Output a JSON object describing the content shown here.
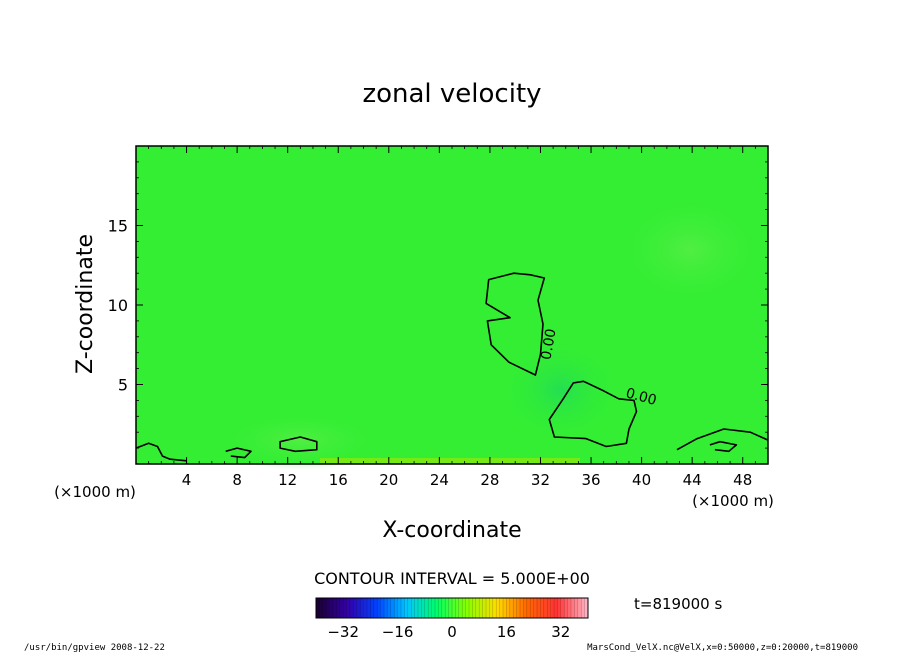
{
  "chart_data": {
    "type": "contour",
    "title": "zonal velocity",
    "xlabel": "X-coordinate",
    "ylabel": "Z-coordinate",
    "x_unit_left": "(×1000 m)",
    "x_unit_right": "(×1000 m)",
    "x_ticks": [
      4,
      8,
      12,
      16,
      20,
      24,
      28,
      32,
      36,
      40,
      44,
      48
    ],
    "y_ticks": [
      5,
      10,
      15
    ],
    "xlim": [
      0,
      50
    ],
    "ylim": [
      0,
      20
    ],
    "contour_interval_text": "CONTOUR INTERVAL = 5.000E+00",
    "time_text": "t=819000 s",
    "contour_labels": [
      "0.00",
      "0.00"
    ],
    "colorbar": {
      "ticks": [
        -32,
        -16,
        0,
        16,
        32
      ],
      "range": [
        -40,
        40
      ],
      "colors": [
        "#1a0033",
        "#3300aa",
        "#0044ff",
        "#00c8ff",
        "#00ff66",
        "#88ff00",
        "#ffdd00",
        "#ff6600",
        "#ff3333",
        "#ffb0c0"
      ]
    },
    "field_color": "#33ee33",
    "contour_color": "#000000",
    "contours": [
      {
        "name": "upper-zero",
        "points": [
          [
            29.6,
            9.2
          ],
          [
            27.7,
            10.1
          ],
          [
            27.9,
            11.6
          ],
          [
            29.9,
            12.0
          ],
          [
            31.2,
            11.9
          ],
          [
            32.3,
            11.7
          ],
          [
            31.8,
            10.3
          ],
          [
            32.2,
            8.8
          ],
          [
            32.0,
            6.9
          ],
          [
            31.6,
            5.6
          ],
          [
            29.5,
            6.4
          ],
          [
            28.1,
            7.5
          ],
          [
            27.8,
            9.0
          ]
        ]
      },
      {
        "name": "lower-zero",
        "points": [
          [
            34.6,
            5.1
          ],
          [
            33.8,
            4.1
          ],
          [
            32.7,
            2.8
          ],
          [
            33.1,
            1.7
          ],
          [
            35.6,
            1.6
          ],
          [
            37.2,
            1.1
          ],
          [
            38.8,
            1.3
          ],
          [
            39.0,
            2.2
          ],
          [
            39.6,
            3.3
          ],
          [
            39.4,
            4.0
          ],
          [
            38.2,
            4.1
          ],
          [
            37.0,
            4.6
          ],
          [
            35.4,
            5.2
          ]
        ]
      },
      {
        "name": "left-edge",
        "points": [
          [
            0.0,
            1.0
          ],
          [
            1.0,
            1.3
          ],
          [
            1.7,
            1.1
          ],
          [
            2.1,
            0.5
          ],
          [
            2.7,
            0.3
          ],
          [
            4.0,
            0.2
          ]
        ]
      },
      {
        "name": "small-11",
        "points": [
          [
            11.4,
            1.4
          ],
          [
            13.0,
            1.7
          ],
          [
            14.3,
            1.4
          ],
          [
            14.3,
            0.9
          ],
          [
            12.6,
            0.8
          ],
          [
            11.4,
            1.0
          ]
        ]
      },
      {
        "name": "small-8",
        "points": [
          [
            7.1,
            0.8
          ],
          [
            8.0,
            1.0
          ],
          [
            9.1,
            0.8
          ],
          [
            8.6,
            0.4
          ],
          [
            7.5,
            0.5
          ]
        ]
      },
      {
        "name": "right-edge",
        "points": [
          [
            42.8,
            0.9
          ],
          [
            44.4,
            1.6
          ],
          [
            46.5,
            2.2
          ],
          [
            48.6,
            2.0
          ],
          [
            50.0,
            1.5
          ]
        ]
      },
      {
        "name": "small-46",
        "points": [
          [
            45.4,
            1.2
          ],
          [
            46.2,
            1.4
          ],
          [
            47.5,
            1.2
          ],
          [
            46.9,
            0.8
          ],
          [
            45.8,
            0.9
          ]
        ]
      }
    ]
  },
  "footer": {
    "left": "/usr/bin/gpview  2008-12-22",
    "right": "MarsCond_VelX.nc@VelX,x=0:50000,z=0:20000,t=819000"
  }
}
